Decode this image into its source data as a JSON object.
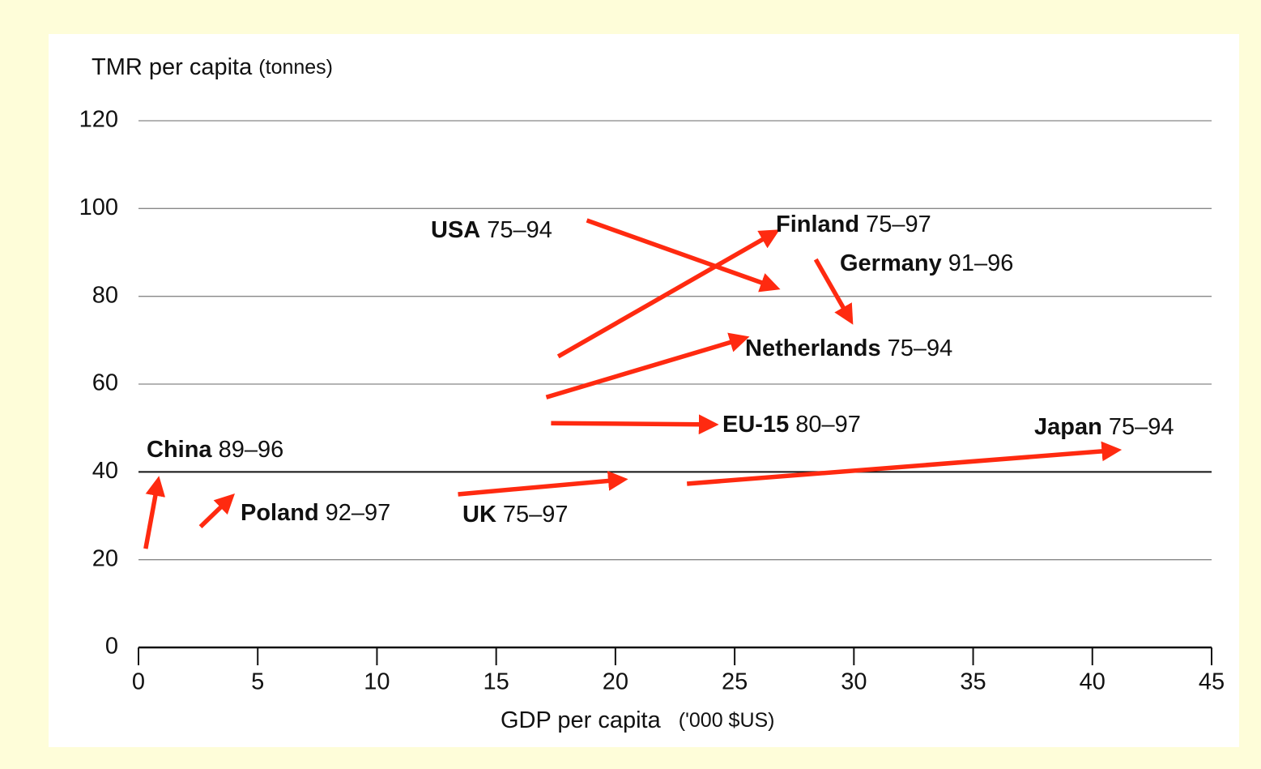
{
  "chart_data": {
    "type": "arrows",
    "y_label": "TMR per capita",
    "y_unit": "(tonnes)",
    "x_label": "GDP per capita",
    "x_unit": "('000 $US)",
    "xlim": [
      0,
      45
    ],
    "ylim": [
      0,
      120
    ],
    "xticks": [
      0,
      5,
      10,
      15,
      20,
      25,
      30,
      35,
      40,
      45
    ],
    "yticks": [
      0,
      20,
      40,
      60,
      80,
      100,
      120
    ],
    "grid": true,
    "reference_y": 40,
    "color": "#ff2a10",
    "series": [
      {
        "name": "USA",
        "period": "75–94",
        "x": [
          18.8,
          26.6
        ],
        "y": [
          97.3,
          82.2
        ]
      },
      {
        "name": "Finland",
        "period": "75–97",
        "x": [
          17.6,
          26.6
        ],
        "y": [
          66.3,
          94.3
        ]
      },
      {
        "name": "Germany",
        "period": "91–96",
        "x": [
          28.4,
          29.8
        ],
        "y": [
          88.4,
          75.1
        ]
      },
      {
        "name": "Netherlands",
        "period": "75–94",
        "x": [
          17.1,
          25.3
        ],
        "y": [
          57.0,
          70.3
        ]
      },
      {
        "name": "EU-15",
        "period": "80–97",
        "x": [
          17.3,
          24.0
        ],
        "y": [
          51.1,
          50.8
        ]
      },
      {
        "name": "Japan",
        "period": "75–94",
        "x": [
          23.0,
          40.9
        ],
        "y": [
          37.3,
          44.9
        ]
      },
      {
        "name": "UK",
        "period": "75–97",
        "x": [
          13.4,
          20.2
        ],
        "y": [
          34.9,
          38.2
        ]
      },
      {
        "name": "Poland",
        "period": "92–97",
        "x": [
          2.6,
          3.8
        ],
        "y": [
          27.5,
          33.8
        ]
      },
      {
        "name": "China",
        "period": "89–96",
        "x": [
          0.3,
          0.8
        ],
        "y": [
          22.5,
          37.3
        ]
      }
    ]
  }
}
